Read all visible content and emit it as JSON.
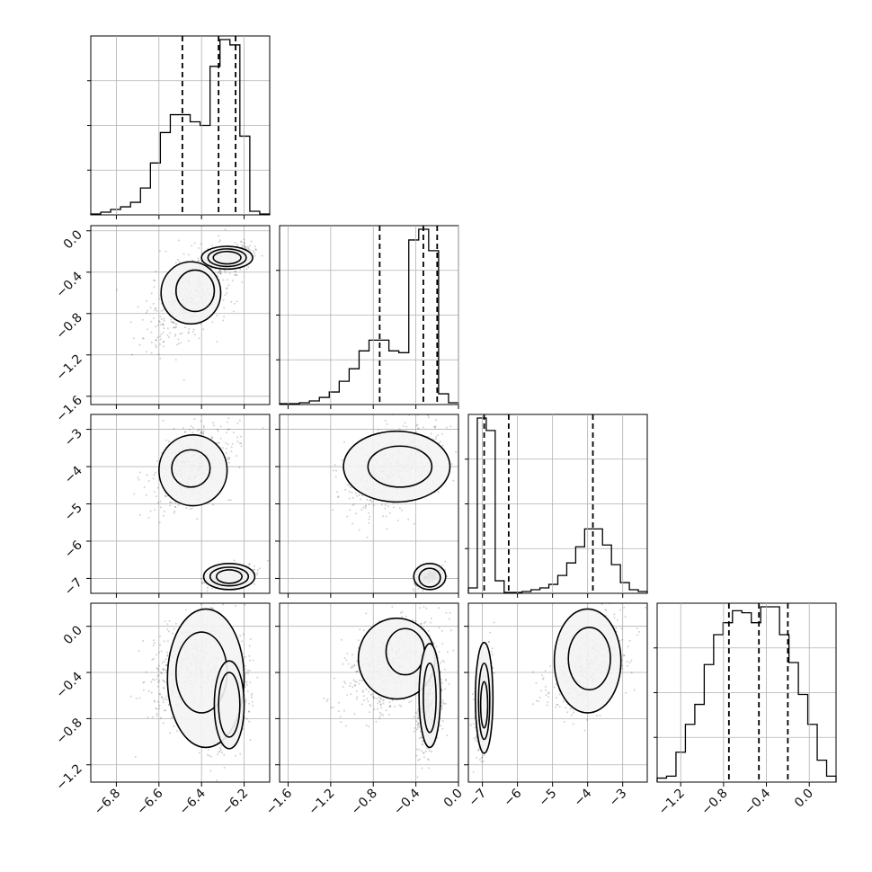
{
  "chart_data": {
    "type": "corner",
    "grid": true,
    "parameters": [
      {
        "xlim": [
          -6.92,
          -6.08
        ],
        "ticks": [
          -6.8,
          -6.6,
          -6.4,
          -6.2
        ],
        "tick_labels": [
          "−6.8",
          "−6.6",
          "−6.4",
          "−6.2"
        ],
        "quantiles": [
          -6.49,
          -6.32,
          -6.24
        ],
        "hist": [
          0.005,
          0.015,
          0.03,
          0.045,
          0.07,
          0.15,
          0.29,
          0.46,
          0.56,
          0.56,
          0.52,
          0.5,
          0.83,
          0.98,
          0.95,
          0.44,
          0.02,
          0.005
        ]
      },
      {
        "xlim": [
          -1.68,
          0.0
        ],
        "ticks": [
          -1.6,
          -1.2,
          -0.8,
          -0.4,
          0.0
        ],
        "tick_labels": [
          "−1.6",
          "−1.2",
          "−0.8",
          "−0.4",
          "0.0"
        ],
        "quantiles": [
          -0.74,
          -0.33,
          -0.2
        ],
        "hist": [
          0.005,
          0.005,
          0.01,
          0.02,
          0.04,
          0.07,
          0.13,
          0.2,
          0.3,
          0.36,
          0.36,
          0.3,
          0.29,
          0.92,
          0.98,
          0.86,
          0.06,
          0.01
        ]
      },
      {
        "xlim": [
          -7.4,
          -2.3
        ],
        "ticks": [
          -7,
          -6,
          -5,
          -4,
          -3
        ],
        "tick_labels": [
          "−7",
          "−6",
          "−5",
          "−4",
          "−3"
        ],
        "quantiles": [
          -6.95,
          -6.25,
          -3.85
        ],
        "hist": [
          0.03,
          0.98,
          0.91,
          0.07,
          0.005,
          0.005,
          0.01,
          0.02,
          0.03,
          0.05,
          0.1,
          0.17,
          0.26,
          0.36,
          0.36,
          0.27,
          0.16,
          0.06,
          0.02,
          0.01
        ]
      },
      {
        "xlim": [
          -1.42,
          0.25
        ],
        "ticks": [
          -1.2,
          -0.8,
          -0.4,
          0.0
        ],
        "tick_labels": [
          "−1.2",
          "−0.8",
          "−0.4",
          "0.0"
        ],
        "quantiles": [
          -0.75,
          -0.47,
          -0.2
        ],
        "hist": [
          0.02,
          0.03,
          0.15,
          0.29,
          0.39,
          0.59,
          0.74,
          0.8,
          0.86,
          0.85,
          0.8,
          0.88,
          0.88,
          0.74,
          0.6,
          0.44,
          0.29,
          0.11,
          0.03
        ]
      }
    ],
    "y_axes": [
      {
        "ylim": [
          -1.68,
          0.05
        ],
        "ticks": [
          0.0,
          -0.4,
          -0.8,
          -1.2,
          -1.6
        ],
        "tick_labels": [
          "0.0",
          "−0.4",
          "−0.8",
          "−1.2",
          "−1.6"
        ]
      },
      {
        "ylim": [
          -7.4,
          -2.6
        ],
        "ticks": [
          -3,
          -4,
          -5,
          -6,
          -7
        ],
        "tick_labels": [
          "−3",
          "−4",
          "−5",
          "−6",
          "−7"
        ]
      },
      {
        "ylim": [
          -1.35,
          0.2
        ],
        "ticks": [
          0.0,
          -0.4,
          -0.8,
          -1.2
        ],
        "tick_labels": [
          "0.0",
          "−0.4",
          "−0.8",
          "−1.2"
        ]
      }
    ],
    "modes": [
      {
        "weight": 0.55,
        "mean": [
          -6.45,
          -0.62,
          -4.0,
          -0.3
        ],
        "sd": [
          0.09,
          0.22,
          0.55,
          0.22
        ]
      },
      {
        "weight": 0.45,
        "mean": [
          -6.27,
          -0.27,
          -6.95,
          -0.68
        ],
        "sd": [
          0.05,
          0.06,
          0.12,
          0.2
        ]
      }
    ],
    "panel_contours": [
      {
        "row": 1,
        "col": 0,
        "levels": [
          {
            "cx": -6.45,
            "cy": -0.6,
            "rx": 0.14,
            "ry": 0.3
          },
          {
            "cx": -6.43,
            "cy": -0.58,
            "rx": 0.09,
            "ry": 0.2
          },
          {
            "cx": -6.28,
            "cy": -0.26,
            "rx": 0.12,
            "ry": 0.11
          },
          {
            "cx": -6.28,
            "cy": -0.26,
            "rx": 0.09,
            "ry": 0.085
          },
          {
            "cx": -6.28,
            "cy": -0.26,
            "rx": 0.065,
            "ry": 0.06
          }
        ]
      },
      {
        "row": 2,
        "col": 0,
        "levels": [
          {
            "cx": -6.44,
            "cy": -4.1,
            "rx": 0.16,
            "ry": 0.95
          },
          {
            "cx": -6.45,
            "cy": -4.05,
            "rx": 0.09,
            "ry": 0.5
          },
          {
            "cx": -6.27,
            "cy": -6.95,
            "rx": 0.12,
            "ry": 0.35
          },
          {
            "cx": -6.27,
            "cy": -6.95,
            "rx": 0.09,
            "ry": 0.25
          },
          {
            "cx": -6.27,
            "cy": -6.95,
            "rx": 0.06,
            "ry": 0.18
          }
        ]
      },
      {
        "row": 2,
        "col": 1,
        "levels": [
          {
            "cx": -0.58,
            "cy": -4.0,
            "rx": 0.5,
            "ry": 0.95
          },
          {
            "cx": -0.55,
            "cy": -4.0,
            "rx": 0.3,
            "ry": 0.55
          },
          {
            "cx": -0.27,
            "cy": -6.95,
            "rx": 0.15,
            "ry": 0.35
          },
          {
            "cx": -0.27,
            "cy": -6.98,
            "rx": 0.1,
            "ry": 0.25
          }
        ]
      },
      {
        "row": 3,
        "col": 0,
        "levels": [
          {
            "cx": -6.38,
            "cy": -0.45,
            "rx": 0.18,
            "ry": 0.6
          },
          {
            "cx": -6.4,
            "cy": -0.4,
            "rx": 0.12,
            "ry": 0.35
          },
          {
            "cx": -6.27,
            "cy": -0.68,
            "rx": 0.07,
            "ry": 0.38
          },
          {
            "cx": -6.27,
            "cy": -0.68,
            "rx": 0.05,
            "ry": 0.28
          }
        ]
      },
      {
        "row": 3,
        "col": 1,
        "levels": [
          {
            "cx": -0.58,
            "cy": -0.28,
            "rx": 0.36,
            "ry": 0.35
          },
          {
            "cx": -0.5,
            "cy": -0.22,
            "rx": 0.18,
            "ry": 0.2
          },
          {
            "cx": -0.27,
            "cy": -0.6,
            "rx": 0.1,
            "ry": 0.45
          },
          {
            "cx": -0.27,
            "cy": -0.62,
            "rx": 0.06,
            "ry": 0.3
          }
        ]
      },
      {
        "row": 3,
        "col": 2,
        "levels": [
          {
            "cx": -4.0,
            "cy": -0.3,
            "rx": 0.95,
            "ry": 0.45
          },
          {
            "cx": -3.95,
            "cy": -0.28,
            "rx": 0.6,
            "ry": 0.27
          },
          {
            "cx": -6.95,
            "cy": -0.62,
            "rx": 0.25,
            "ry": 0.48
          },
          {
            "cx": -6.95,
            "cy": -0.65,
            "rx": 0.16,
            "ry": 0.33
          },
          {
            "cx": -6.95,
            "cy": -0.68,
            "rx": 0.1,
            "ry": 0.2
          }
        ]
      }
    ]
  }
}
